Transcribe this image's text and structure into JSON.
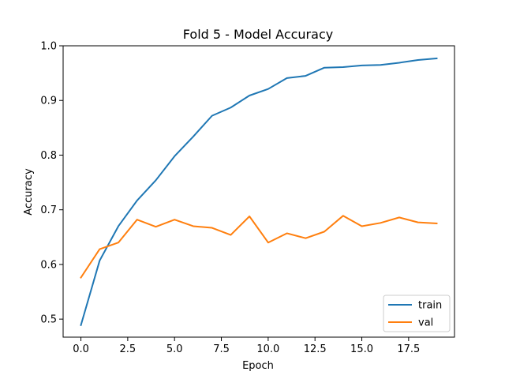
{
  "chart_data": {
    "type": "line",
    "title": "Fold 5 - Model Accuracy",
    "xlabel": "Epoch",
    "ylabel": "Accuracy",
    "xlim": [
      -0.95,
      19.95
    ],
    "ylim": [
      0.467,
      1.0
    ],
    "xticks": [
      0.0,
      2.5,
      5.0,
      7.5,
      10.0,
      12.5,
      15.0,
      17.5
    ],
    "xtick_labels": [
      "0.0",
      "2.5",
      "5.0",
      "7.5",
      "10.0",
      "12.5",
      "15.0",
      "17.5"
    ],
    "yticks": [
      0.5,
      0.6,
      0.7,
      0.8,
      0.9,
      1.0
    ],
    "ytick_labels": [
      "0.5",
      "0.6",
      "0.7",
      "0.8",
      "0.9",
      "1.0"
    ],
    "grid": false,
    "legend_position": "lower-right",
    "x": [
      0,
      1,
      2,
      3,
      4,
      5,
      6,
      7,
      8,
      9,
      10,
      11,
      12,
      13,
      14,
      15,
      16,
      17,
      18,
      19
    ],
    "series": [
      {
        "name": "train",
        "color": "#1f77b4",
        "values": [
          0.489,
          0.607,
          0.67,
          0.717,
          0.754,
          0.798,
          0.834,
          0.872,
          0.887,
          0.909,
          0.921,
          0.941,
          0.945,
          0.96,
          0.961,
          0.964,
          0.965,
          0.969,
          0.974,
          0.977
        ]
      },
      {
        "name": "val",
        "color": "#ff7f0e",
        "values": [
          0.576,
          0.628,
          0.64,
          0.682,
          0.669,
          0.682,
          0.67,
          0.667,
          0.654,
          0.688,
          0.64,
          0.657,
          0.648,
          0.66,
          0.689,
          0.67,
          0.676,
          0.686,
          0.677,
          0.675
        ]
      }
    ]
  }
}
